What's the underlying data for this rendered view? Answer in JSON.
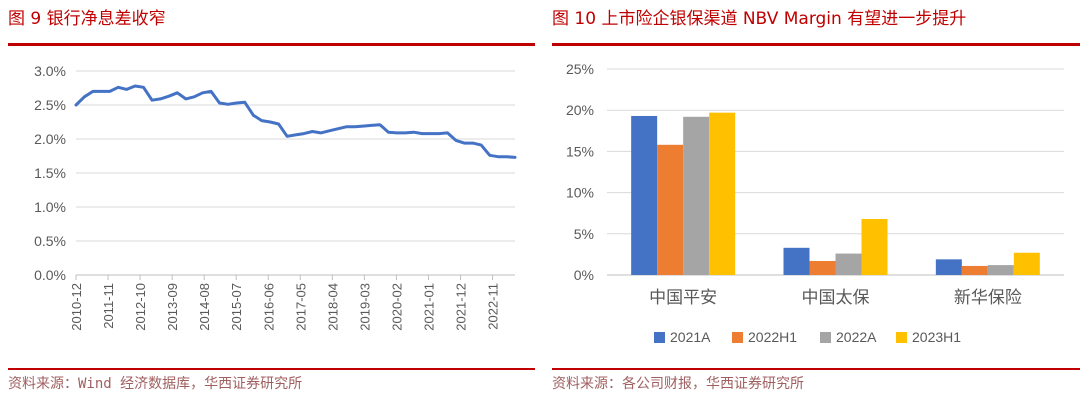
{
  "left": {
    "title": "图 9  银行净息差收窄",
    "source": "资料来源：Wind 经济数据库，华西证券研究所"
  },
  "right": {
    "title": "图 10  上市险企银保渠道 NBV Margin 有望进一步提升",
    "source": "资料来源：各公司财报，华西证券研究所"
  },
  "colors": {
    "accent": "#c00000",
    "line": "#4472c4"
  },
  "chart_data": [
    {
      "type": "line",
      "title": "",
      "ylim": [
        0,
        3.0
      ],
      "yticks": [
        "0.0%",
        "0.5%",
        "1.0%",
        "1.5%",
        "2.0%",
        "2.5%",
        "3.0%"
      ],
      "xticks": [
        "2010-12",
        "2011-11",
        "2012-10",
        "2013-09",
        "2014-08",
        "2015-07",
        "2016-06",
        "2017-05",
        "2018-04",
        "2019-03",
        "2020-02",
        "2021-01",
        "2021-12",
        "2022-11"
      ],
      "grid": true,
      "series": [
        {
          "values": [
            2.5,
            2.62,
            2.7,
            2.7,
            2.7,
            2.76,
            2.73,
            2.78,
            2.76,
            2.57,
            2.59,
            2.63,
            2.68,
            2.59,
            2.62,
            2.68,
            2.7,
            2.53,
            2.51,
            2.53,
            2.54,
            2.35,
            2.27,
            2.25,
            2.22,
            2.04,
            2.06,
            2.08,
            2.11,
            2.09,
            2.12,
            2.15,
            2.18,
            2.18,
            2.19,
            2.2,
            2.21,
            2.1,
            2.09,
            2.09,
            2.1,
            2.08,
            2.08,
            2.08,
            2.09,
            1.98,
            1.94,
            1.94,
            1.91,
            1.76,
            1.74,
            1.74,
            1.73
          ]
        }
      ]
    },
    {
      "type": "bar",
      "title": "",
      "categories": [
        "中国平安",
        "中国太保",
        "新华保险"
      ],
      "ylim": [
        0,
        25
      ],
      "yticks": [
        "0%",
        "5%",
        "10%",
        "15%",
        "20%",
        "25%"
      ],
      "grid": true,
      "legend_position": "bottom",
      "series": [
        {
          "name": "2021A",
          "color": "#4472c4",
          "values": [
            19.3,
            3.3,
            1.9
          ]
        },
        {
          "name": "2022H1",
          "color": "#ed7d31",
          "values": [
            15.8,
            1.7,
            1.1
          ]
        },
        {
          "name": "2022A",
          "color": "#a5a5a5",
          "values": [
            19.2,
            2.6,
            1.2
          ]
        },
        {
          "name": "2023H1",
          "color": "#ffc000",
          "values": [
            19.7,
            6.8,
            2.7
          ]
        }
      ]
    }
  ]
}
